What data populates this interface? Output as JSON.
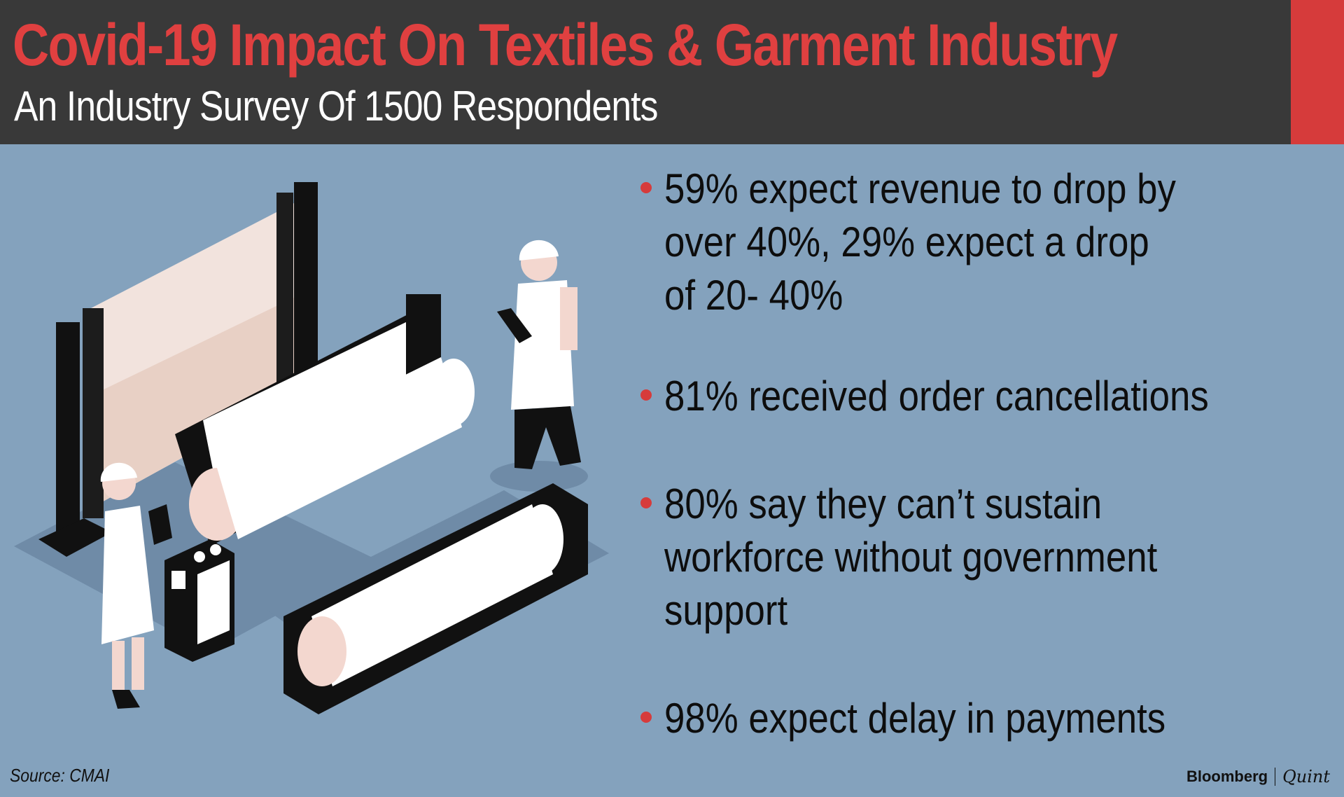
{
  "header": {
    "title": "Covid-19 Impact On Textiles & Garment Industry",
    "subtitle": "An Industry Survey Of 1500 Respondents"
  },
  "points": [
    {
      "line1": "59% expect revenue to drop by",
      "line2": "over 40%, 29% expect a drop",
      "line3": "of 20- 40%"
    },
    {
      "line1": "81% received order cancellations"
    },
    {
      "line1": "80% say they can’t sustain",
      "line2": "workforce without government",
      "line3": "support"
    },
    {
      "line1": "98% expect delay in payments"
    }
  ],
  "footer": {
    "source": "Source: CMAI",
    "brand_primary": "Bloomberg",
    "brand_secondary": "Quint"
  },
  "colors": {
    "accent": "#d63b3b",
    "header_bg": "#393939",
    "background": "#84a2bd"
  }
}
